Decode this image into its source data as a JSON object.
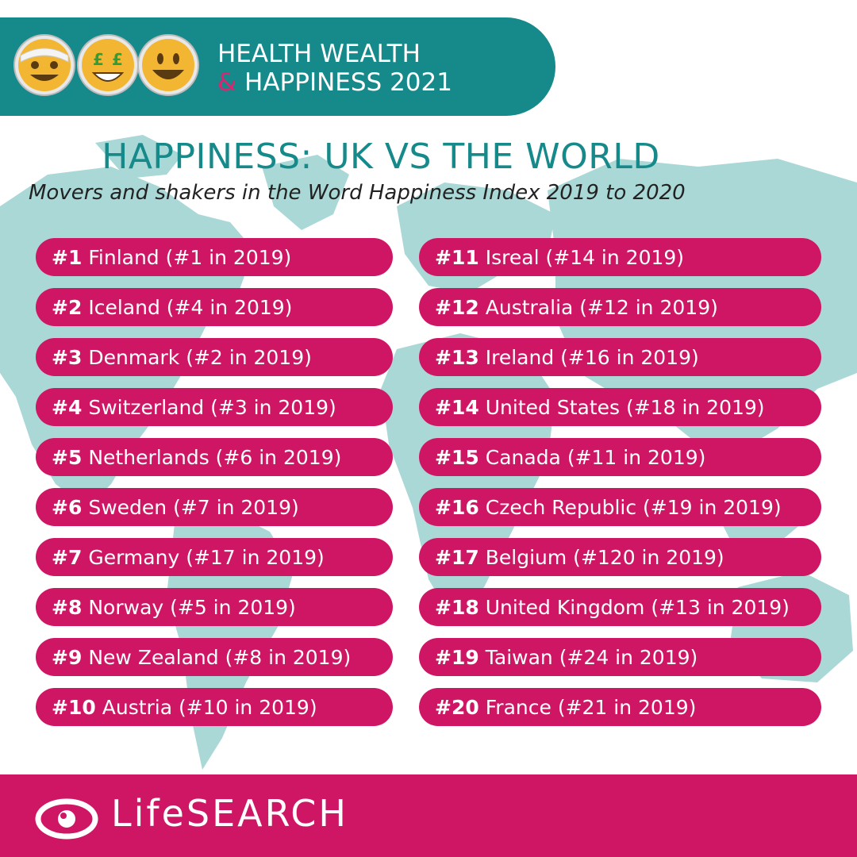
{
  "colors": {
    "teal": "#16898a",
    "pink": "#cf1665",
    "map": "#a5d6d4",
    "banner_amp": "#e0236f"
  },
  "banner": {
    "line1": "HEALTH WEALTH",
    "amp": "&",
    "line2": " HAPPINESS 2021",
    "emojis": [
      "bandaged-face-emoji",
      "pound-eyes-face-emoji",
      "grinning-face-emoji"
    ],
    "emoji_glyph": "£"
  },
  "heading": "HAPPINESS: UK VS THE WORLD",
  "subheading": "Movers and shakers in the Word Happiness Index 2019 to 2020",
  "left_column": [
    {
      "rank": "#1",
      "text": "Finland (#1 in 2019)"
    },
    {
      "rank": "#2",
      "text": "Iceland (#4 in 2019)"
    },
    {
      "rank": "#3",
      "text": "Denmark (#2 in 2019)"
    },
    {
      "rank": "#4",
      "text": "Switzerland (#3 in 2019)"
    },
    {
      "rank": "#5",
      "text": "Netherlands (#6 in 2019)"
    },
    {
      "rank": "#6",
      "text": "Sweden  (#7 in 2019)"
    },
    {
      "rank": "#7",
      "text": "Germany (#17 in 2019)"
    },
    {
      "rank": "#8",
      "text": "Norway (#5 in 2019)"
    },
    {
      "rank": "#9",
      "text": "New Zealand (#8 in 2019)"
    },
    {
      "rank": "#10",
      "text": "Austria (#10 in 2019)"
    }
  ],
  "right_column": [
    {
      "rank": "#11",
      "text": "Isreal (#14 in 2019)"
    },
    {
      "rank": "#12",
      "text": "Australia (#12 in 2019)"
    },
    {
      "rank": "#13",
      "text": "Ireland (#16 in 2019)"
    },
    {
      "rank": "#14",
      "text": "United States (#18 in 2019)"
    },
    {
      "rank": "#15",
      "text": "Canada (#11 in 2019)"
    },
    {
      "rank": "#16",
      "text": "Czech Republic (#19 in 2019)"
    },
    {
      "rank": "#17",
      "text": "Belgium (#120 in 2019)"
    },
    {
      "rank": "#18",
      "text": "United Kingdom (#13 in 2019)"
    },
    {
      "rank": "#19",
      "text": "Taiwan (#24 in 2019)"
    },
    {
      "rank": "#20",
      "text": "France (#21 in 2019)"
    }
  ],
  "footer": {
    "logo_text": "LifeSEARCH",
    "logo_icon": "eye-logo-icon"
  }
}
